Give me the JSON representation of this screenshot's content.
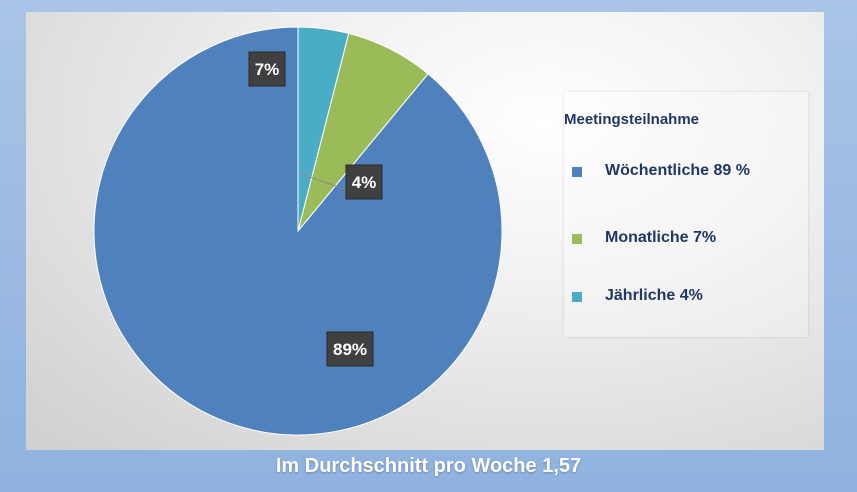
{
  "chart_data": {
    "type": "pie",
    "categories": [
      "Wöchentliche",
      "Monatliche",
      "Jährliche"
    ],
    "values": [
      89,
      7,
      4
    ],
    "data_labels": [
      "89%",
      "7%",
      "4%"
    ],
    "colors": [
      "#4f81bd",
      "#9bbb59",
      "#4bacc6"
    ],
    "legend": {
      "title": "Meetingsteilnahme",
      "placement": "right",
      "entries": [
        "Wöchentliche 89 %",
        "Monatliche 7%",
        "Jährliche 4%"
      ]
    },
    "label_style": {
      "background": "#404040",
      "color": "#ffffff"
    }
  },
  "footer": {
    "title": "Im Durchschnitt pro Woche 1,57"
  }
}
